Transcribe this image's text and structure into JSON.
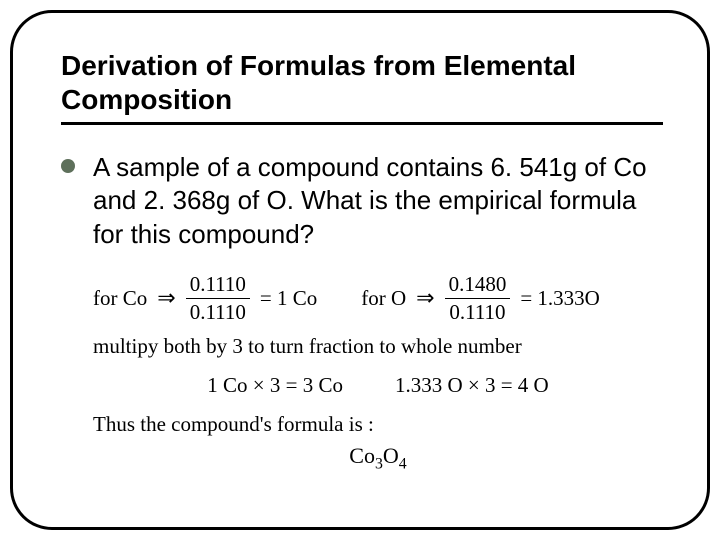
{
  "slide": {
    "title": "Derivation of Formulas from Elemental Composition",
    "body": "A sample of a compound contains 6. 541g of Co and 2. 368g of O.  What is the empirical formula for this compound?",
    "frame_color": "#000000",
    "bullet_color": "#5e705b"
  },
  "math": {
    "line1": {
      "co": {
        "label": "for Co",
        "num": "0.1110",
        "den": "0.1110",
        "result": "= 1 Co"
      },
      "o": {
        "label": "for O",
        "num": "0.1480",
        "den": "0.1110",
        "result": "= 1.333O"
      }
    },
    "line2": "multipy both by 3 to turn fraction to whole number",
    "line3": {
      "left": "1 Co × 3 = 3 Co",
      "right": "1.333 O × 3 = 4 O"
    },
    "line4": "Thus the compound's formula is :",
    "formula": {
      "base": "Co",
      "sub1": "3",
      "mid": "O",
      "sub2": "4"
    }
  }
}
